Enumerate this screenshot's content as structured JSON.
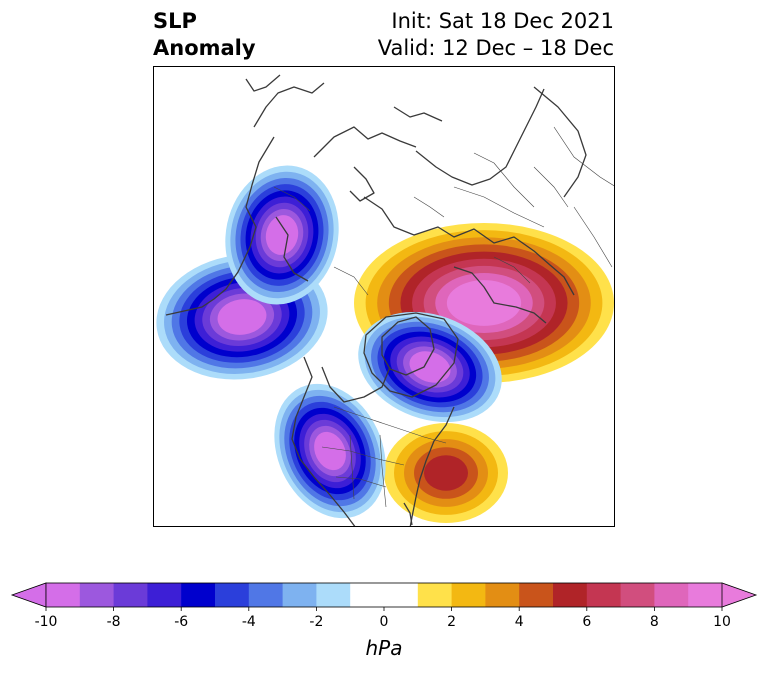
{
  "title": {
    "left_line1": "SLP",
    "left_line2": "Anomaly",
    "right_line1": "Init: Sat 18 Dec 2021",
    "right_line2": "Valid: 12 Dec – 18 Dec"
  },
  "colorbar": {
    "units": "hPa",
    "min": -10,
    "max": 10,
    "step": 1,
    "tick_labels": [
      "-10",
      "-8",
      "-6",
      "-4",
      "-2",
      "0",
      "2",
      "4",
      "6",
      "8",
      "10"
    ],
    "tick_values": [
      -10,
      -8,
      -6,
      -4,
      -2,
      0,
      2,
      4,
      6,
      8,
      10
    ],
    "extend": "both",
    "colors": [
      "#d46ee8",
      "#9c58de",
      "#6b3bd8",
      "#3d1fd6",
      "#0000cd",
      "#2b3fdb",
      "#5077e6",
      "#7eb2f0",
      "#acdcfa",
      "#ffffff",
      "#ffffff",
      "#ffe14a",
      "#f3b812",
      "#e38e14",
      "#c9541b",
      "#b02428",
      "#c43652",
      "#d14e7e",
      "#df66bb",
      "#e87bdc"
    ]
  },
  "anomalies": [
    {
      "name": "north-pacific-low",
      "kind": "low",
      "peak": -10
    },
    {
      "name": "western-canada-low",
      "kind": "low",
      "peak": -10
    },
    {
      "name": "western-us-low",
      "kind": "low",
      "peak": -10
    },
    {
      "name": "greenland-low",
      "kind": "low",
      "peak": -10
    },
    {
      "name": "arctic-siberia-high",
      "kind": "high",
      "peak": 10
    },
    {
      "name": "western-atlantic-high",
      "kind": "high",
      "peak": 5
    }
  ]
}
